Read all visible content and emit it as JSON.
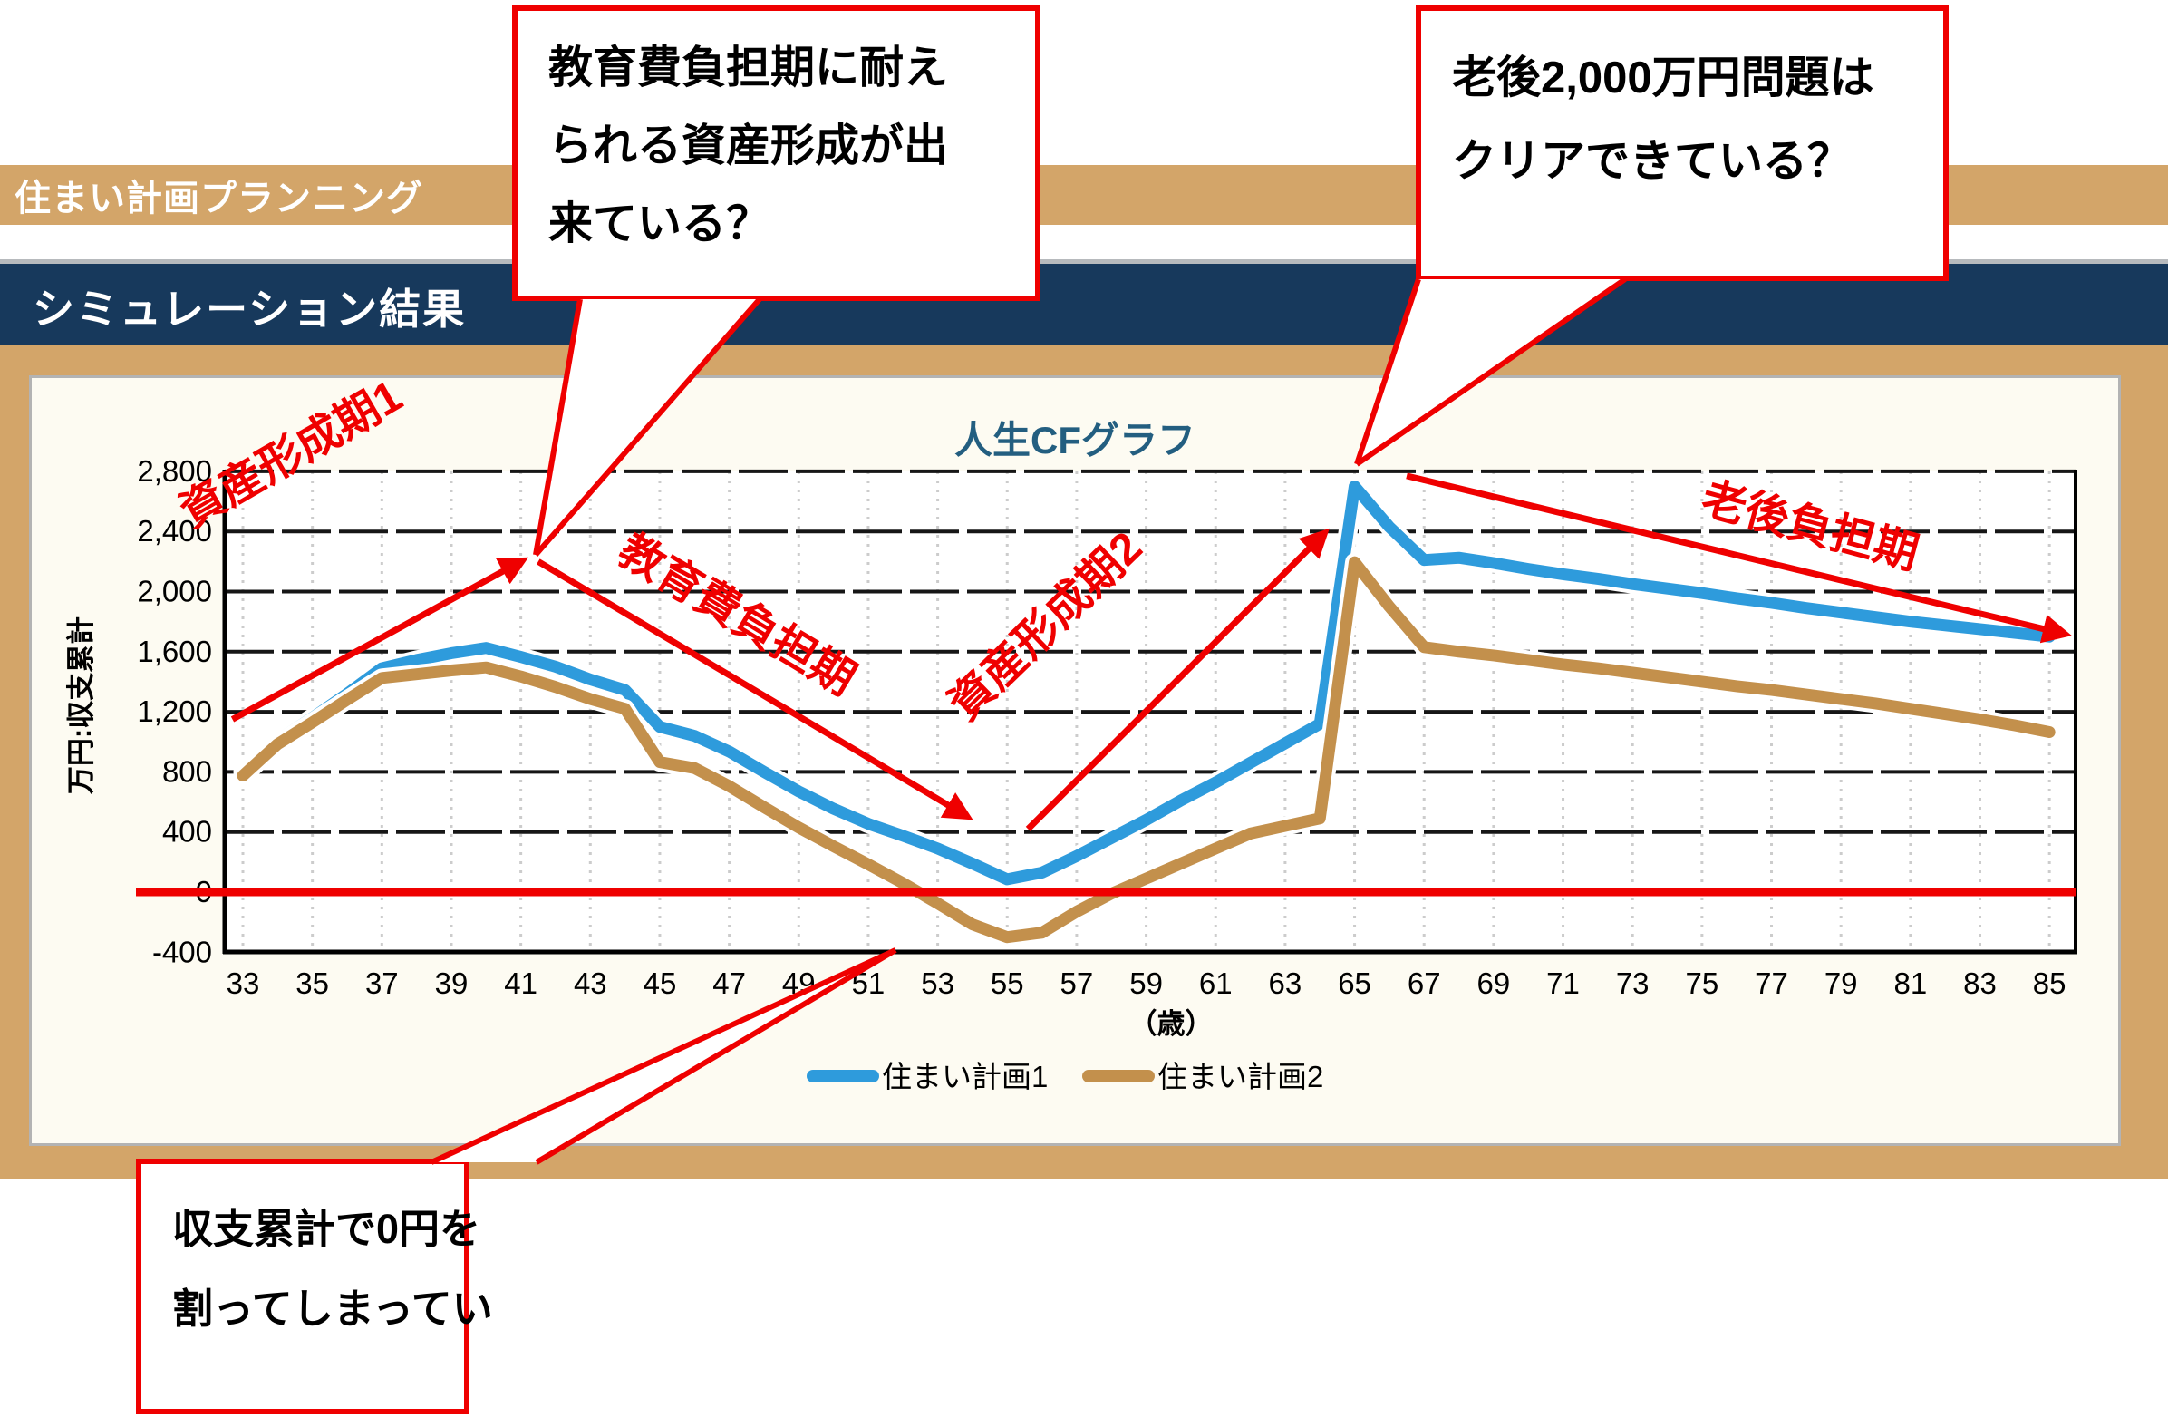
{
  "header": {
    "app_title": "住まい計画プランニング",
    "section_title": "シミュレーション結果"
  },
  "callouts": [
    {
      "id": "education-callout",
      "lines": [
        "教育費負担期に耐え",
        "られる資産形成が出",
        "来ている？"
      ]
    },
    {
      "id": "retirement-callout",
      "lines": [
        "老後2,000万円問題は",
        "クリアできている？"
      ]
    },
    {
      "id": "deficit-callout",
      "lines": [
        "収支累計で0円を",
        "割ってしまってい"
      ]
    }
  ],
  "chart_data": {
    "type": "line",
    "title": "人生CFグラフ",
    "title_color": "#235e80",
    "xlabel": "（歳）",
    "ylabel": "万円:収支累計",
    "x_start_age": 33,
    "x_end_age": 85,
    "x_tick_labels": [
      "33",
      "35",
      "37",
      "39",
      "41",
      "43",
      "45",
      "47",
      "49",
      "51",
      "53",
      "55",
      "57",
      "59",
      "61",
      "63",
      "65",
      "67",
      "69",
      "71",
      "73",
      "75",
      "77",
      "79",
      "81",
      "83",
      "85"
    ],
    "ylim": [
      -400,
      2800
    ],
    "ytick_step": 400,
    "y_tick_labels": [
      "-400",
      "0",
      "400",
      "800",
      "1,200",
      "1,600",
      "2,000",
      "2,400",
      "2,800"
    ],
    "grid": {
      "horizontal": "black-dashed",
      "vertical": "gray-dotted"
    },
    "legend_position": "bottom-center",
    "series": [
      {
        "name": "住まい計画1",
        "color": "#2e9bdc",
        "values": [
          800,
          1010,
          1160,
          1320,
          1490,
          1545,
          1590,
          1625,
          1565,
          1500,
          1415,
          1345,
          1100,
          1040,
          935,
          800,
          670,
          555,
          455,
          375,
          290,
          190,
          85,
          130,
          240,
          360,
          480,
          610,
          730,
          860,
          990,
          1120,
          2700,
          2430,
          2210,
          2225,
          2190,
          2150,
          2115,
          2085,
          2050,
          2020,
          1990,
          1955,
          1925,
          1890,
          1860,
          1830,
          1800,
          1775,
          1750,
          1725,
          1700
        ]
      },
      {
        "name": "住まい計画2",
        "color": "#c3904c",
        "values": [
          775,
          985,
          1130,
          1280,
          1425,
          1450,
          1475,
          1495,
          1435,
          1365,
          1285,
          1220,
          865,
          825,
          705,
          565,
          430,
          305,
          185,
          60,
          -75,
          -215,
          -300,
          -270,
          -130,
          -10,
          90,
          190,
          290,
          390,
          440,
          490,
          2195,
          1900,
          1630,
          1600,
          1575,
          1545,
          1515,
          1490,
          1460,
          1430,
          1400,
          1370,
          1345,
          1315,
          1285,
          1255,
          1220,
          1185,
          1150,
          1110,
          1065
        ]
      }
    ],
    "annotations": {
      "color": "#ef0000",
      "zero_line": 0,
      "phases": [
        {
          "label": "資産形成期1",
          "from": [
            32.7,
            1150
          ],
          "to": [
            41.0,
            2200
          ],
          "label_at": [
            34.6,
            2830
          ],
          "rotation": -30
        },
        {
          "label": "教育費負担期",
          "from": [
            41.5,
            2200
          ],
          "to": [
            53.8,
            510
          ],
          "label_at": [
            47.0,
            1760
          ],
          "rotation": 31
        },
        {
          "label": "資産形成期2",
          "from": [
            55.6,
            420
          ],
          "to": [
            64.1,
            2380
          ],
          "label_at": [
            56.4,
            1700
          ],
          "rotation": -44
        },
        {
          "label": "老後負担期",
          "from": [
            66.5,
            2770
          ],
          "to": [
            85.4,
            1720
          ],
          "label_at": [
            78.0,
            2340
          ],
          "rotation": 15
        }
      ]
    }
  }
}
